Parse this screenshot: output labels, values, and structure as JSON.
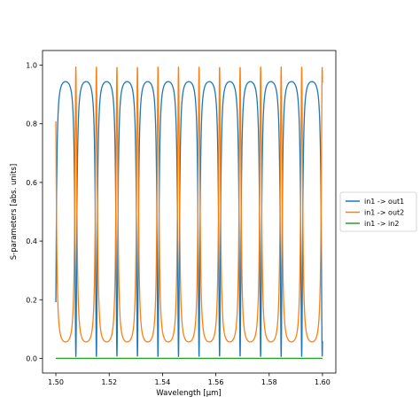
{
  "chart_data": {
    "type": "line",
    "title": "",
    "xlabel": "Wavelength [μm]",
    "ylabel": "S-parameters [abs. units]",
    "xlim": [
      1.495,
      1.605
    ],
    "ylim": [
      -0.05,
      1.05
    ],
    "x_ticks": [
      1.5,
      1.52,
      1.54,
      1.56,
      1.58,
      1.6
    ],
    "x_tick_labels": [
      "1.50",
      "1.52",
      "1.54",
      "1.56",
      "1.58",
      "1.60"
    ],
    "y_ticks": [
      0.0,
      0.2,
      0.4,
      0.6,
      0.8,
      1.0
    ],
    "y_tick_labels": [
      "0.0",
      "0.2",
      "0.4",
      "0.6",
      "0.8",
      "1.0"
    ],
    "grid": false,
    "legend_placement": "outside-right",
    "series": [
      {
        "name": "in1 -> out1",
        "color": "#1f77b4",
        "x_range": [
          1.5,
          1.6
        ],
        "mean": 0.51,
        "amplitude": 0.46,
        "fsr_um": 0.0077,
        "dip_wavelengths_um": [
          1.5075,
          1.5152,
          1.5229,
          1.5306,
          1.5383,
          1.546,
          1.5537,
          1.5614,
          1.5691,
          1.5768,
          1.5845,
          1.5922
        ]
      },
      {
        "name": "in1 -> out2",
        "color": "#ff7f0e",
        "x_range": [
          1.5,
          1.6
        ],
        "mean": 0.51,
        "amplitude": 0.46,
        "fsr_um": 0.0077,
        "peak_wavelengths_um": [
          1.5,
          1.5075,
          1.5152,
          1.5229,
          1.5306,
          1.5383,
          1.546,
          1.5537,
          1.5614,
          1.5691,
          1.5768,
          1.5845,
          1.5922
        ]
      },
      {
        "name": "in1 -> in2",
        "color": "#2ca02c",
        "x": [
          1.5,
          1.6
        ],
        "y": [
          0.0,
          0.0
        ]
      }
    ]
  }
}
